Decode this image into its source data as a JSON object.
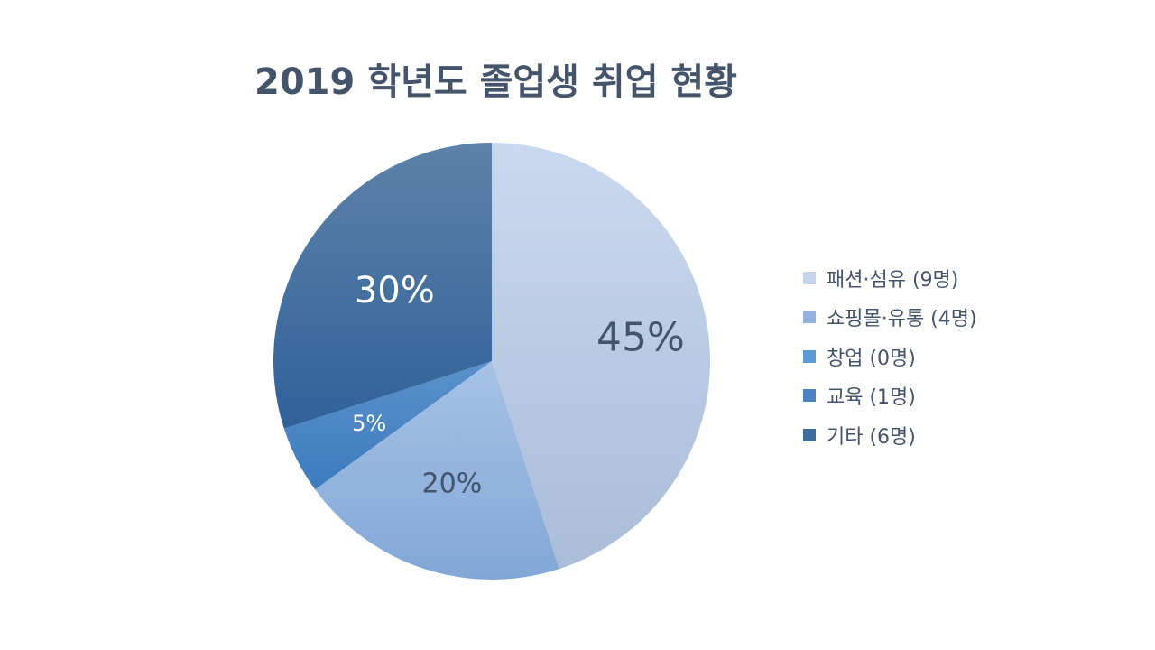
{
  "chart_data": {
    "type": "pie",
    "title": "2019 학년도 졸업생 취업 현황",
    "start_angle_deg": 0,
    "direction": "clockwise",
    "slices": [
      {
        "label": "패션·섬유 (9명)",
        "value": 9,
        "percent_label": "45%",
        "color_top": "#c9d9ef",
        "color_bottom": "#a9bdd9",
        "legend_color": "#c3d4ec",
        "label_color": "#44546a"
      },
      {
        "label": "쇼핑몰·유통 (4명)",
        "value": 4,
        "percent_label": "20%",
        "color_top": "#a6c2e6",
        "color_bottom": "#82a7d6",
        "legend_color": "#93b3df",
        "label_color": "#44546a"
      },
      {
        "label": "창업 (0명)",
        "value": 0,
        "percent_label": "",
        "color_top": "#5b9bd5",
        "color_bottom": "#4a86c2",
        "legend_color": "#5b9bd5",
        "label_color": "#ffffff"
      },
      {
        "label": "교육 (1명)",
        "value": 1,
        "percent_label": "5%",
        "color_top": "#5a91cc",
        "color_bottom": "#3d7bbd",
        "legend_color": "#4a83c4",
        "label_color": "#ffffff"
      },
      {
        "label": "기타 (6명)",
        "value": 6,
        "percent_label": "30%",
        "color_top": "#5d82a9",
        "color_bottom": "#2f6198",
        "legend_color": "#3e6c9f",
        "label_color": "#ffffff"
      }
    ]
  }
}
